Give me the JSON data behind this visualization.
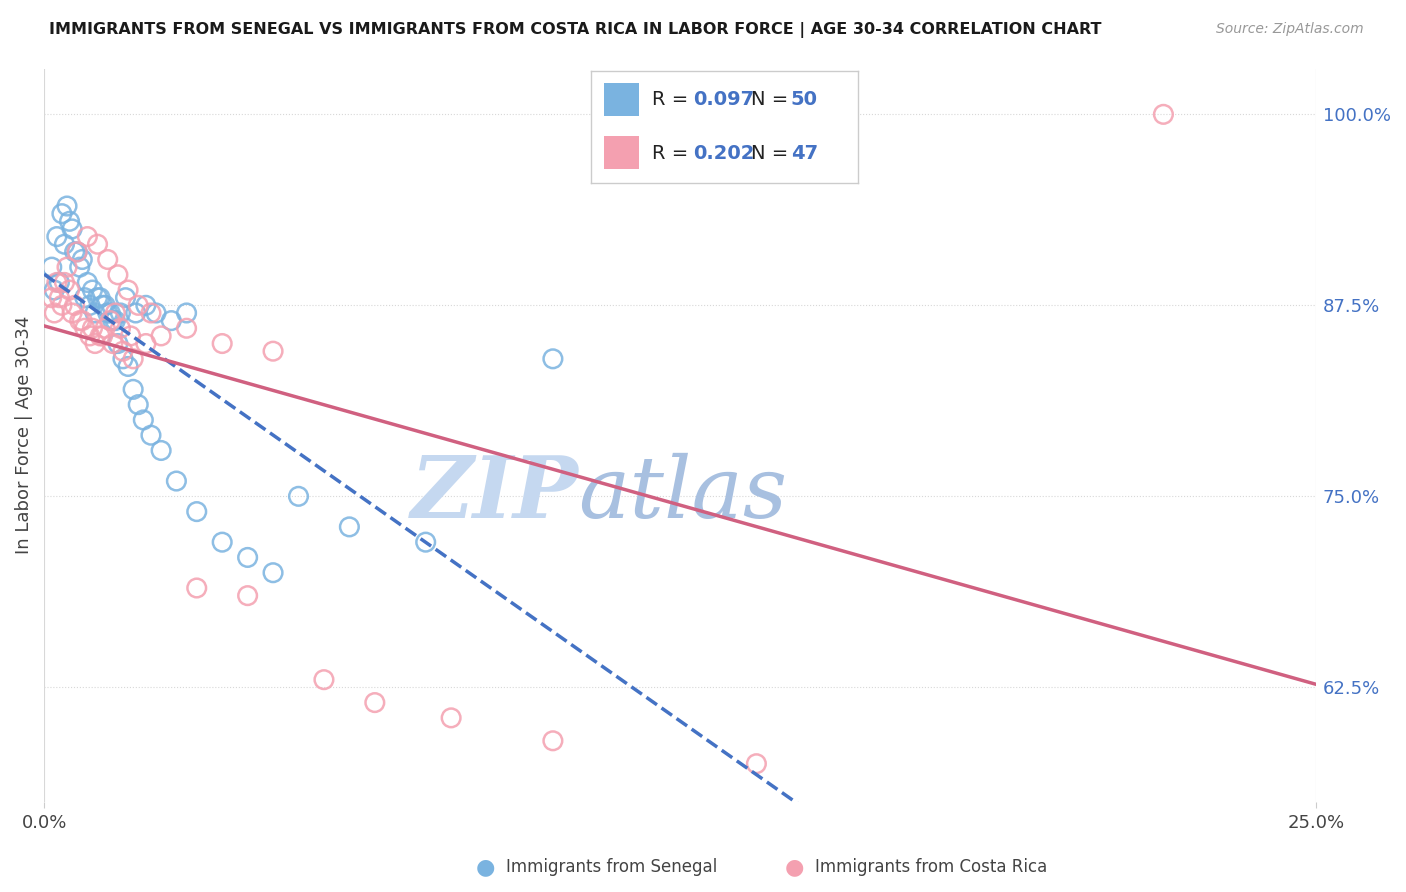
{
  "title": "IMMIGRANTS FROM SENEGAL VS IMMIGRANTS FROM COSTA RICA IN LABOR FORCE | AGE 30-34 CORRELATION CHART",
  "source": "Source: ZipAtlas.com",
  "ylabel": "In Labor Force | Age 30-34",
  "xlim": [
    0.0,
    25.0
  ],
  "ylim": [
    55.0,
    103.0
  ],
  "x_ticks": [
    0.0,
    25.0
  ],
  "x_tick_labels": [
    "0.0%",
    "25.0%"
  ],
  "y_ticks": [
    62.5,
    75.0,
    87.5,
    100.0
  ],
  "y_tick_labels": [
    "62.5%",
    "75.0%",
    "87.5%",
    "100.0%"
  ],
  "senegal_color": "#7ab3e0",
  "senegal_edge_color": "#5a9fd4",
  "costa_rica_color": "#f4a0b0",
  "costa_rica_edge_color": "#e07090",
  "senegal_R": 0.097,
  "senegal_N": 50,
  "costa_rica_R": 0.202,
  "costa_rica_N": 47,
  "legend_blue_color": "#4472c4",
  "trend_senegal_color": "#4472c4",
  "trend_cr_color": "#d06080",
  "watermark_zip_color": "#c8d8f0",
  "watermark_atlas_color": "#b8c8e0",
  "background_color": "#ffffff",
  "grid_color": "#d8d8d8",
  "senegal_x": [
    0.2,
    0.3,
    0.4,
    0.5,
    0.6,
    0.7,
    0.8,
    0.9,
    1.0,
    1.1,
    1.2,
    1.3,
    1.4,
    1.5,
    1.6,
    1.8,
    2.0,
    2.2,
    2.5,
    2.8,
    0.15,
    0.25,
    0.35,
    0.45,
    0.55,
    0.65,
    0.75,
    0.85,
    0.95,
    1.05,
    1.15,
    1.25,
    1.35,
    1.45,
    1.55,
    1.65,
    1.75,
    1.85,
    1.95,
    2.1,
    2.3,
    2.6,
    3.0,
    3.5,
    4.0,
    4.5,
    5.0,
    6.0,
    7.5,
    10.0
  ],
  "senegal_y": [
    88.5,
    89.0,
    91.5,
    93.0,
    91.0,
    90.0,
    88.0,
    87.5,
    87.0,
    88.0,
    87.5,
    87.0,
    86.5,
    87.0,
    88.0,
    87.0,
    87.5,
    87.0,
    86.5,
    87.0,
    90.0,
    92.0,
    93.5,
    94.0,
    92.5,
    91.0,
    90.5,
    89.0,
    88.5,
    88.0,
    87.5,
    87.0,
    86.5,
    85.0,
    84.0,
    83.5,
    82.0,
    81.0,
    80.0,
    79.0,
    78.0,
    76.0,
    74.0,
    72.0,
    71.0,
    70.0,
    75.0,
    73.0,
    72.0,
    84.0
  ],
  "costa_rica_x": [
    0.2,
    0.3,
    0.4,
    0.5,
    0.6,
    0.7,
    0.8,
    0.9,
    1.0,
    1.1,
    1.2,
    1.3,
    1.4,
    1.5,
    1.7,
    2.0,
    2.3,
    2.8,
    3.5,
    4.5,
    0.25,
    0.45,
    0.65,
    0.85,
    1.05,
    1.25,
    1.45,
    1.65,
    1.85,
    2.1,
    0.15,
    0.35,
    0.55,
    0.75,
    0.95,
    1.15,
    1.35,
    1.55,
    1.75,
    3.0,
    4.0,
    5.5,
    6.5,
    8.0,
    10.0,
    14.0,
    22.0
  ],
  "costa_rica_y": [
    87.0,
    88.0,
    89.0,
    88.5,
    87.5,
    86.5,
    86.0,
    85.5,
    85.0,
    85.5,
    86.0,
    86.5,
    87.0,
    86.0,
    85.5,
    85.0,
    85.5,
    86.0,
    85.0,
    84.5,
    89.0,
    90.0,
    91.0,
    92.0,
    91.5,
    90.5,
    89.5,
    88.5,
    87.5,
    87.0,
    88.0,
    87.5,
    87.0,
    86.5,
    86.0,
    85.5,
    85.0,
    84.5,
    84.0,
    69.0,
    68.5,
    63.0,
    61.5,
    60.5,
    59.0,
    57.5,
    100.0
  ]
}
